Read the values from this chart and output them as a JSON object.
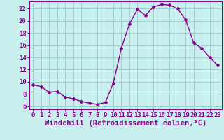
{
  "x": [
    0,
    1,
    2,
    3,
    4,
    5,
    6,
    7,
    8,
    9,
    10,
    11,
    12,
    13,
    14,
    15,
    16,
    17,
    18,
    19,
    20,
    21,
    22,
    23
  ],
  "y": [
    9.5,
    9.2,
    8.3,
    8.4,
    7.5,
    7.2,
    6.8,
    6.5,
    6.3,
    6.6,
    9.8,
    15.5,
    19.5,
    21.9,
    20.9,
    22.3,
    22.7,
    22.6,
    22.0,
    20.2,
    16.4,
    15.5,
    14.0,
    12.7
  ],
  "line_color": "#880088",
  "marker": "D",
  "marker_size": 2.5,
  "bg_color": "#c8eeee",
  "grid_color": "#99cccc",
  "xlabel": "Windchill (Refroidissement éolien,°C)",
  "xlim": [
    -0.5,
    23.5
  ],
  "ylim": [
    5.5,
    23.2
  ],
  "yticks": [
    6,
    8,
    10,
    12,
    14,
    16,
    18,
    20,
    22
  ],
  "xticks": [
    0,
    1,
    2,
    3,
    4,
    5,
    6,
    7,
    8,
    9,
    10,
    11,
    12,
    13,
    14,
    15,
    16,
    17,
    18,
    19,
    20,
    21,
    22,
    23
  ],
  "tick_label_fontsize": 6.5,
  "xlabel_fontsize": 7.5,
  "line_width": 1.0
}
